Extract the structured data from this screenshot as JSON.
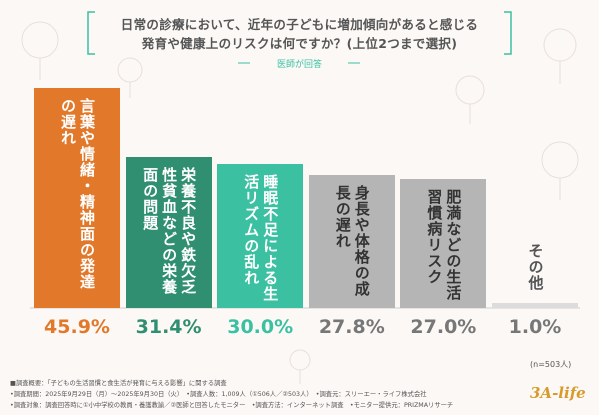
{
  "chart_data": {
    "type": "bar",
    "title": "日常の診療において、近年の子どもに増加傾向があると感じる",
    "title_line2": "発育や健康上のリスクは何ですか？(上位2つまで選択)",
    "subtitle": "医師が回答",
    "categories": [
      "言葉や情緒・精神面の発達の遅れ",
      "栄養不良や鉄欠乏性貧血などの栄養面の問題",
      "睡眠不足による生活リズムの乱れ",
      "身長や体格の成長の遅れ",
      "肥満などの生活習慣病リスク",
      "その他"
    ],
    "values": [
      45.9,
      31.4,
      30.0,
      27.8,
      27.0,
      1.0
    ],
    "value_labels": [
      "45.9%",
      "31.4%",
      "30.0%",
      "27.8%",
      "27.0%",
      "1.0%"
    ],
    "colors": [
      "#e2782a",
      "#2f8f70",
      "#3cc0a2",
      "#b5b5b5",
      "#b5b5b5",
      "#dcdcdc"
    ],
    "label_colors": [
      "#ffffff",
      "#ffffff",
      "#ffffff",
      "#333333",
      "#333333",
      "#555555"
    ],
    "value_label_colors": [
      "#e2782a",
      "#2f8f70",
      "#3cc0a2",
      "#777777",
      "#777777",
      "#777777"
    ],
    "note": "(n=503人)",
    "footer": [
      "■調査概要：「子どもの生活習慣と食生活が発育に与える影響」に関する調査",
      "•調査期間：2025年9月29日（月）～2025年9月30日（火）　•調査人数：1,009人（①506人／②503人）　•調査元：スリーエー・ライフ株式会社",
      "•調査対象：調査回答時に①小中学校の教員・養護教諭／②医師と回答したモニター　•調査方法：インターネット調査　•モニター提供元：PRIZMAリサーチ"
    ],
    "logo": "3A-life"
  }
}
